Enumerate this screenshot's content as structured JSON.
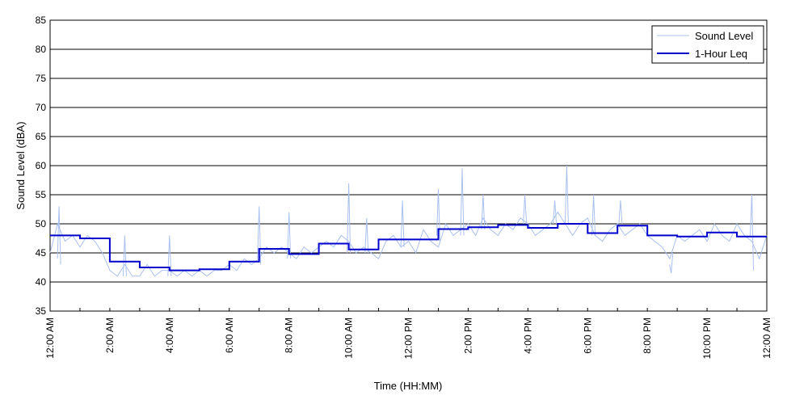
{
  "chart_data": {
    "type": "line",
    "title": "",
    "xlabel": "Time (HH:MM)",
    "ylabel": "Sound Level (dBA)",
    "xlim": [
      0,
      24
    ],
    "ylim": [
      35,
      85
    ],
    "y_ticks": [
      35,
      40,
      45,
      50,
      55,
      60,
      65,
      70,
      75,
      80,
      85
    ],
    "x_ticks": [
      0,
      2,
      4,
      6,
      8,
      10,
      12,
      14,
      16,
      18,
      20,
      22,
      24
    ],
    "x_tick_labels": [
      "12:00 AM",
      "2:00 AM",
      "4:00 AM",
      "6:00 AM",
      "8:00 AM",
      "10:00 AM",
      "12:00 PM",
      "2:00 PM",
      "4:00 PM",
      "6:00 PM",
      "8:00 PM",
      "10:00 PM",
      "12:00 AM"
    ],
    "grid": "horizontal",
    "legend_position": "top-right",
    "series": [
      {
        "name": "Sound Level",
        "color": "#a9c0ee",
        "style": "thin",
        "x": [
          0,
          0.25,
          0.5,
          0.75,
          1,
          1.25,
          1.5,
          1.75,
          2,
          2.25,
          2.5,
          2.75,
          3,
          3.25,
          3.5,
          3.75,
          4,
          4.25,
          4.5,
          4.75,
          5,
          5.25,
          5.5,
          5.75,
          6,
          6.25,
          6.5,
          6.75,
          7,
          7.25,
          7.5,
          7.75,
          8,
          8.25,
          8.5,
          8.75,
          9,
          9.25,
          9.5,
          9.75,
          10,
          10.25,
          10.5,
          10.75,
          11,
          11.25,
          11.5,
          11.75,
          12,
          12.25,
          12.5,
          12.75,
          13,
          13.25,
          13.5,
          13.75,
          14,
          14.25,
          14.5,
          14.75,
          15,
          15.25,
          15.5,
          15.75,
          16,
          16.25,
          16.5,
          16.75,
          17,
          17.25,
          17.5,
          17.75,
          18,
          18.25,
          18.5,
          18.75,
          19,
          19.25,
          19.5,
          19.75,
          20,
          20.25,
          20.5,
          20.75,
          21,
          21.25,
          21.5,
          21.75,
          22,
          22.25,
          22.5,
          22.75,
          23,
          23.25,
          23.5,
          23.75,
          24
        ],
        "values": [
          45,
          50,
          47,
          48,
          46,
          48,
          47,
          45,
          42,
          41,
          43,
          41,
          41,
          43,
          41,
          42,
          42,
          41,
          42,
          41,
          42,
          41,
          42,
          42,
          43,
          42,
          44,
          43,
          44,
          46,
          45,
          46,
          45,
          44,
          46,
          45,
          46,
          47,
          46,
          48,
          47,
          45,
          46,
          45,
          44,
          47,
          48,
          46,
          47,
          45,
          49,
          47,
          46,
          50,
          48,
          49,
          50,
          48,
          51,
          49,
          48,
          50,
          49,
          51,
          50,
          48,
          49,
          50,
          52,
          50,
          48,
          50,
          51,
          48,
          47,
          49,
          50,
          48,
          49,
          50,
          48,
          47,
          46,
          44,
          48,
          47,
          48,
          49,
          47,
          50,
          48,
          47,
          50,
          48,
          47,
          44,
          48
        ]
      },
      {
        "name": "1-Hour Leq",
        "color": "#0000cc",
        "style": "step",
        "x": [
          0,
          1,
          2,
          3,
          4,
          5,
          6,
          7,
          8,
          9,
          10,
          11,
          12,
          13,
          14,
          15,
          16,
          17,
          18,
          19,
          20,
          21,
          22,
          23
        ],
        "values": [
          48.0,
          47.5,
          43.5,
          42.5,
          42.0,
          42.2,
          43.5,
          45.7,
          44.8,
          46.6,
          45.6,
          47.3,
          47.3,
          49.1,
          49.4,
          49.8,
          49.3,
          50.0,
          48.4,
          49.7,
          48.0,
          47.8,
          48.5,
          47.8
        ]
      }
    ],
    "spikes": [
      {
        "x": 0.3,
        "values": [
          44,
          53,
          43
        ]
      },
      {
        "x": 2.5,
        "values": [
          41,
          48,
          41
        ]
      },
      {
        "x": 4.0,
        "values": [
          41,
          48,
          41
        ]
      },
      {
        "x": 7.0,
        "values": [
          44,
          53,
          43
        ]
      },
      {
        "x": 8.0,
        "values": [
          44,
          52,
          44
        ]
      },
      {
        "x": 10.0,
        "values": [
          45,
          57,
          45
        ]
      },
      {
        "x": 10.6,
        "values": [
          45,
          51,
          45
        ]
      },
      {
        "x": 11.8,
        "values": [
          46,
          54,
          46
        ]
      },
      {
        "x": 13.0,
        "values": [
          48,
          56,
          47
        ]
      },
      {
        "x": 13.8,
        "values": [
          48,
          59.5,
          48
        ]
      },
      {
        "x": 14.5,
        "values": [
          49,
          55,
          49
        ]
      },
      {
        "x": 15.9,
        "values": [
          50,
          55,
          50
        ]
      },
      {
        "x": 16.9,
        "values": [
          50,
          54,
          50
        ]
      },
      {
        "x": 17.3,
        "values": [
          50,
          60,
          50
        ]
      },
      {
        "x": 18.2,
        "values": [
          48,
          55,
          48
        ]
      },
      {
        "x": 19.1,
        "values": [
          50,
          54,
          50
        ]
      },
      {
        "x": 20.8,
        "values": [
          43,
          41.5,
          45
        ]
      },
      {
        "x": 23.5,
        "values": [
          48,
          55,
          42
        ]
      }
    ]
  }
}
